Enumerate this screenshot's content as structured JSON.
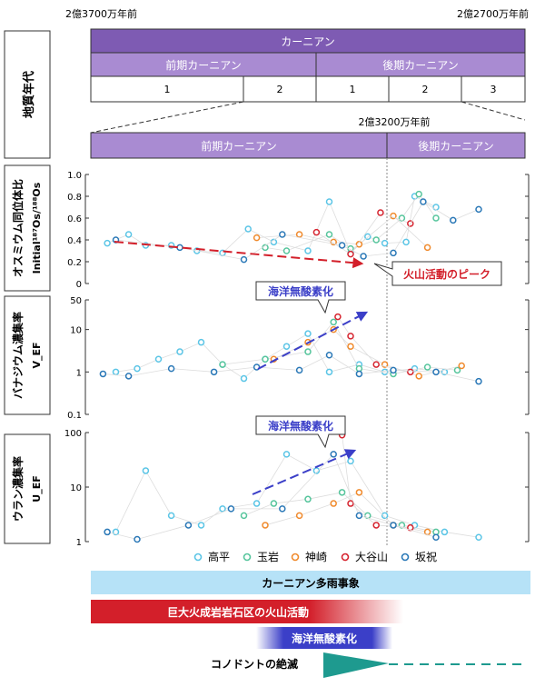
{
  "timescale": {
    "top_left_age": "2億3700万年前",
    "top_right_age": "2億2700万年前",
    "stage": "カーニアン",
    "substage_early": "前期カーニアン",
    "substage_late": "後期カーニアン",
    "zones": [
      "1",
      "2",
      "1",
      "2",
      "3"
    ],
    "boundary_age": "2億3200万年前",
    "axis_title": "地質年代"
  },
  "colors": {
    "stage": "#7e5bb3",
    "substage": "#a98bd2",
    "高平": "#5bc5e6",
    "玉岩": "#56c59c",
    "神崎": "#f08a2c",
    "大谷山": "#d6242f",
    "坂祝": "#2a78b7",
    "rainy": "#b6e2f7",
    "volcanic": "#d31f2a",
    "anoxia": "#3b3fc8",
    "conodont": "#1e9a8f"
  },
  "annotations": {
    "volcanic_peak": "火山活動のピーク",
    "anoxia_v": "海洋無酸素化",
    "anoxia_u": "海洋無酸素化"
  },
  "chart_data": [
    {
      "type": "scatter",
      "ylabel": [
        "オスミウム同位体比",
        "Initial¹⁸⁷Os/¹⁸⁸Os"
      ],
      "yscale": "linear",
      "ylim": [
        0,
        1.0
      ],
      "ytick_labels": [
        "0",
        "0.2",
        "0.4",
        "0.6",
        "0.8",
        "1.0"
      ],
      "x_relative_scale": "0 = 2億3700万年前 … 1 = 2億2700万年前 (approximate)",
      "series": [
        {
          "name": "高平",
          "x": [
            0.03,
            0.08,
            0.12,
            0.18,
            0.24,
            0.3,
            0.36,
            0.42,
            0.5,
            0.55,
            0.6,
            0.64,
            0.68,
            0.73,
            0.75,
            0.8
          ],
          "y": [
            0.37,
            0.45,
            0.35,
            0.35,
            0.3,
            0.28,
            0.5,
            0.38,
            0.3,
            0.75,
            0.28,
            0.43,
            0.37,
            0.38,
            0.8,
            0.7
          ]
        },
        {
          "name": "玉岩",
          "x": [
            0.4,
            0.45,
            0.55,
            0.6,
            0.66,
            0.72,
            0.76,
            0.8
          ],
          "y": [
            0.33,
            0.3,
            0.45,
            0.32,
            0.4,
            0.6,
            0.82,
            0.6
          ]
        },
        {
          "name": "神崎",
          "x": [
            0.38,
            0.48,
            0.56,
            0.62,
            0.7,
            0.78
          ],
          "y": [
            0.42,
            0.45,
            0.38,
            0.36,
            0.62,
            0.33
          ]
        },
        {
          "name": "大谷山",
          "x": [
            0.52,
            0.6,
            0.67,
            0.74
          ],
          "y": [
            0.47,
            0.27,
            0.65,
            0.55
          ]
        },
        {
          "name": "坂祝",
          "x": [
            0.05,
            0.2,
            0.35,
            0.44,
            0.58,
            0.63,
            0.7,
            0.77,
            0.84,
            0.9
          ],
          "y": [
            0.4,
            0.33,
            0.22,
            0.45,
            0.35,
            0.25,
            0.28,
            0.75,
            0.58,
            0.68
          ]
        }
      ]
    },
    {
      "type": "scatter",
      "ylabel": [
        "バナジウム濃集率",
        "V_EF"
      ],
      "yscale": "log",
      "ylim": [
        0.1,
        50
      ],
      "ytick_labels": [
        "0.1",
        "1",
        "10",
        "50"
      ],
      "series": [
        {
          "name": "高平",
          "x": [
            0.05,
            0.1,
            0.15,
            0.2,
            0.25,
            0.3,
            0.35,
            0.4,
            0.45,
            0.5,
            0.55,
            0.62,
            0.68,
            0.75,
            0.82
          ],
          "y": [
            1,
            1.2,
            2,
            3,
            5,
            1.5,
            0.7,
            2,
            4,
            8,
            1,
            1.5,
            1,
            1.2,
            1
          ]
        },
        {
          "name": "玉岩",
          "x": [
            0.3,
            0.4,
            0.5,
            0.56,
            0.62,
            0.7,
            0.78,
            0.85
          ],
          "y": [
            1.5,
            2,
            3,
            15,
            1.2,
            0.9,
            1.3,
            1.1
          ]
        },
        {
          "name": "神崎",
          "x": [
            0.42,
            0.5,
            0.56,
            0.6,
            0.68,
            0.76,
            0.86
          ],
          "y": [
            2,
            5,
            10,
            4,
            1.5,
            0.8,
            1.4
          ]
        },
        {
          "name": "大谷山",
          "x": [
            0.57,
            0.6,
            0.66,
            0.74
          ],
          "y": [
            20,
            7,
            1.5,
            1
          ]
        },
        {
          "name": "坂祝",
          "x": [
            0.02,
            0.08,
            0.18,
            0.28,
            0.38,
            0.48,
            0.55,
            0.62,
            0.7,
            0.8,
            0.9
          ],
          "y": [
            0.9,
            0.8,
            1.2,
            1,
            1.3,
            1.1,
            2.5,
            0.9,
            1.1,
            1,
            0.6
          ]
        }
      ]
    },
    {
      "type": "scatter",
      "ylabel": [
        "ウラン濃集率",
        "U_EF"
      ],
      "yscale": "log",
      "ylim": [
        1,
        100
      ],
      "ytick_labels": [
        "1",
        "10",
        "100"
      ],
      "series": [
        {
          "name": "高平",
          "x": [
            0.05,
            0.12,
            0.18,
            0.25,
            0.3,
            0.38,
            0.45,
            0.52,
            0.6,
            0.68,
            0.75,
            0.82,
            0.9
          ],
          "y": [
            1.5,
            20,
            3,
            2,
            4,
            5,
            40,
            20,
            30,
            3,
            2,
            1.5,
            1.2
          ]
        },
        {
          "name": "玉岩",
          "x": [
            0.35,
            0.42,
            0.5,
            0.58,
            0.64,
            0.72,
            0.8
          ],
          "y": [
            3,
            5,
            6,
            8,
            3,
            2,
            1.5
          ]
        },
        {
          "name": "神崎",
          "x": [
            0.4,
            0.48,
            0.56,
            0.62,
            0.7,
            0.78
          ],
          "y": [
            2,
            3,
            5,
            8,
            2,
            1.5
          ]
        },
        {
          "name": "大谷山",
          "x": [
            0.58,
            0.6,
            0.66,
            0.74
          ],
          "y": [
            90,
            5,
            2,
            1.8
          ]
        },
        {
          "name": "坂祝",
          "x": [
            0.03,
            0.1,
            0.22,
            0.32,
            0.44,
            0.56,
            0.62,
            0.7,
            0.8
          ],
          "y": [
            1.5,
            1.1,
            2,
            4,
            4,
            40,
            3,
            2,
            1.2
          ]
        }
      ]
    }
  ],
  "legend": [
    "高平",
    "玉岩",
    "神崎",
    "大谷山",
    "坂祝"
  ],
  "events": {
    "rainy": "カーニアン多雨事象",
    "volcanic": "巨大火成岩岩石区の火山活動",
    "anoxia": "海洋無酸素化",
    "conodont": "コノドントの絶滅"
  }
}
